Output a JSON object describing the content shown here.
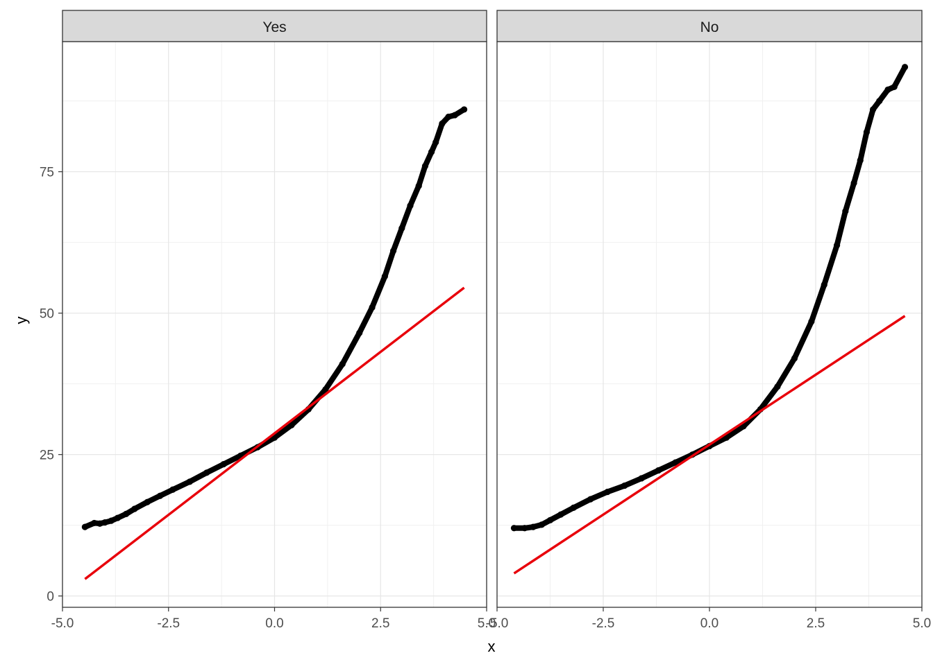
{
  "chart_data": {
    "type": "scatter",
    "title": "",
    "xlabel": "x",
    "ylabel": "y",
    "xlim": [
      -5.0,
      5.0
    ],
    "ylim": [
      -2,
      98
    ],
    "x_ticks": [
      -5.0,
      -2.5,
      0.0,
      2.5,
      5.0
    ],
    "x_tick_labels": [
      "-5.0",
      "-2.5",
      "0.0",
      "2.5",
      "5.0"
    ],
    "y_ticks": [
      0,
      25,
      50,
      75
    ],
    "y_tick_labels": [
      "0",
      "25",
      "50",
      "75"
    ],
    "grid": true,
    "colors": {
      "points": "#000000",
      "line": "#e8000b",
      "strip": "#d9d9d9"
    },
    "panels": [
      {
        "label": "Yes",
        "points": [
          [
            -4.47,
            12.2
          ],
          [
            -4.25,
            12.9
          ],
          [
            -4.12,
            12.8
          ],
          [
            -4.0,
            13.0
          ],
          [
            -3.85,
            13.3
          ],
          [
            -3.7,
            13.8
          ],
          [
            -3.5,
            14.5
          ],
          [
            -3.3,
            15.4
          ],
          [
            -3.0,
            16.6
          ],
          [
            -2.7,
            17.7
          ],
          [
            -2.4,
            18.8
          ],
          [
            -2.0,
            20.2
          ],
          [
            -1.6,
            21.8
          ],
          [
            -1.2,
            23.3
          ],
          [
            -0.8,
            24.8
          ],
          [
            -0.4,
            26.3
          ],
          [
            0.0,
            28.0
          ],
          [
            0.4,
            30.2
          ],
          [
            0.8,
            33.0
          ],
          [
            1.2,
            36.5
          ],
          [
            1.6,
            41.0
          ],
          [
            2.0,
            46.5
          ],
          [
            2.3,
            51.0
          ],
          [
            2.6,
            56.5
          ],
          [
            2.8,
            61.0
          ],
          [
            3.0,
            65.0
          ],
          [
            3.2,
            69.0
          ],
          [
            3.4,
            72.5
          ],
          [
            3.55,
            76.0
          ],
          [
            3.7,
            78.5
          ],
          [
            3.8,
            80.2
          ],
          [
            3.95,
            83.5
          ],
          [
            4.1,
            84.7
          ],
          [
            4.25,
            85.0
          ],
          [
            4.47,
            86.0
          ]
        ],
        "line": [
          [
            -4.47,
            3.0
          ],
          [
            4.47,
            54.5
          ]
        ]
      },
      {
        "label": "No",
        "points": [
          [
            -4.6,
            12.0
          ],
          [
            -4.35,
            12.0
          ],
          [
            -4.15,
            12.2
          ],
          [
            -3.95,
            12.6
          ],
          [
            -3.75,
            13.4
          ],
          [
            -3.5,
            14.4
          ],
          [
            -3.2,
            15.6
          ],
          [
            -2.8,
            17.1
          ],
          [
            -2.4,
            18.4
          ],
          [
            -2.0,
            19.5
          ],
          [
            -1.6,
            20.8
          ],
          [
            -1.2,
            22.2
          ],
          [
            -0.8,
            23.6
          ],
          [
            -0.4,
            25.0
          ],
          [
            0.0,
            26.5
          ],
          [
            0.4,
            28.0
          ],
          [
            0.8,
            30.0
          ],
          [
            1.2,
            33.0
          ],
          [
            1.6,
            37.0
          ],
          [
            2.0,
            42.0
          ],
          [
            2.4,
            48.5
          ],
          [
            2.7,
            55.0
          ],
          [
            3.0,
            62.0
          ],
          [
            3.2,
            68.0
          ],
          [
            3.4,
            73.0
          ],
          [
            3.55,
            77.0
          ],
          [
            3.7,
            82.0
          ],
          [
            3.85,
            86.0
          ],
          [
            4.0,
            87.5
          ],
          [
            4.2,
            89.5
          ],
          [
            4.35,
            90.0
          ],
          [
            4.6,
            93.5
          ]
        ],
        "line": [
          [
            -4.6,
            4.0
          ],
          [
            4.6,
            49.5
          ]
        ]
      }
    ]
  }
}
